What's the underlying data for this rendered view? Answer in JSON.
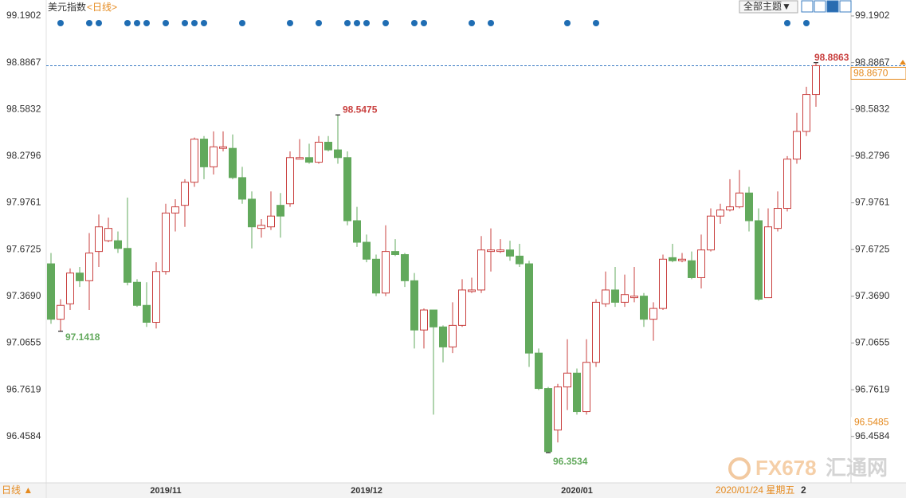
{
  "chart_data": {
    "type": "candlestick",
    "title": "美元指数",
    "subtitle": "<日线>",
    "theme_button": "全部主题▼",
    "period_button": "日线 ▲",
    "cursor_date": "2020/01/24 星期五",
    "cursor_page": "2",
    "watermark_brand": "FX678",
    "watermark_name": "汇通网",
    "categories": [
      null,
      null,
      null,
      null,
      null,
      null,
      null,
      null,
      null,
      null,
      null,
      null,
      "2019/11",
      null,
      null,
      null,
      null,
      null,
      null,
      null,
      null,
      null,
      null,
      null,
      null,
      null,
      null,
      null,
      null,
      null,
      null,
      null,
      null,
      "2019/12",
      null,
      null,
      null,
      null,
      null,
      null,
      null,
      null,
      null,
      null,
      null,
      null,
      null,
      null,
      null,
      null,
      null,
      null,
      null,
      null,
      null,
      "2020/01",
      null,
      null,
      null,
      null,
      null,
      null,
      null,
      null,
      null,
      null,
      null,
      null,
      null,
      null,
      null,
      null,
      null,
      null,
      null,
      null,
      null,
      null,
      null,
      null,
      null
    ],
    "open": [
      97.58,
      97.22,
      97.32,
      97.52,
      97.47,
      97.66,
      97.73,
      97.73,
      97.68,
      97.46,
      97.31,
      97.2,
      97.53,
      97.91,
      97.96,
      98.11,
      98.39,
      98.21,
      98.33,
      98.33,
      98.14,
      98.0,
      97.81,
      97.82,
      97.96,
      97.97,
      98.26,
      98.27,
      98.24,
      98.37,
      98.32,
      98.27,
      97.86,
      97.72,
      97.61,
      97.39,
      97.66,
      97.64,
      97.47,
      97.15,
      97.28,
      97.17,
      97.04,
      97.18,
      97.4,
      97.41,
      97.66,
      97.66,
      97.67,
      97.63,
      97.58,
      97.0,
      96.77,
      96.5,
      96.78,
      96.87,
      96.62,
      96.94,
      97.32,
      97.41,
      97.33,
      97.36,
      97.37,
      97.22,
      97.29,
      97.62,
      97.6,
      97.6,
      97.49,
      97.67,
      97.89,
      97.93,
      97.95,
      98.04,
      97.86,
      97.36,
      97.81,
      97.94,
      98.26,
      98.44,
      98.68
    ],
    "high": [
      97.65,
      97.35,
      97.55,
      97.56,
      97.78,
      97.9,
      97.88,
      97.79,
      98.01,
      97.48,
      97.46,
      97.59,
      97.97,
      98.0,
      98.13,
      98.4,
      98.41,
      98.44,
      98.44,
      98.42,
      98.21,
      98.05,
      97.87,
      98.05,
      98.04,
      98.31,
      98.39,
      98.36,
      98.41,
      98.41,
      98.5475,
      98.31,
      97.95,
      97.77,
      97.64,
      97.83,
      97.74,
      97.65,
      97.52,
      97.29,
      97.28,
      97.18,
      97.33,
      97.48,
      97.49,
      97.76,
      97.81,
      97.74,
      97.73,
      97.71,
      97.6,
      97.03,
      96.78,
      96.8,
      97.09,
      96.9,
      97.09,
      97.35,
      97.53,
      97.56,
      97.51,
      97.56,
      97.39,
      97.33,
      97.64,
      97.71,
      97.65,
      97.66,
      97.77,
      97.94,
      97.97,
      98.13,
      98.19,
      98.08,
      97.94,
      97.94,
      98.05,
      98.28,
      98.56,
      98.73,
      98.8863
    ],
    "low": [
      97.19,
      97.1418,
      97.28,
      97.43,
      97.28,
      97.56,
      97.72,
      97.65,
      97.44,
      97.3,
      97.17,
      97.16,
      97.51,
      97.79,
      97.82,
      98.08,
      98.13,
      98.16,
      98.31,
      98.13,
      97.97,
      97.68,
      97.75,
      97.8,
      97.75,
      97.95,
      98.26,
      98.23,
      98.23,
      98.31,
      98.23,
      97.83,
      97.69,
      97.59,
      97.37,
      97.37,
      97.63,
      97.43,
      97.03,
      97.03,
      96.6,
      96.94,
      97.0,
      97.17,
      97.39,
      97.39,
      97.53,
      97.65,
      97.6,
      97.56,
      96.91,
      96.76,
      96.3534,
      96.42,
      96.63,
      96.6,
      96.6,
      96.91,
      97.3,
      97.3,
      97.3,
      97.33,
      97.17,
      97.08,
      97.28,
      97.59,
      97.59,
      97.48,
      97.42,
      97.66,
      97.84,
      97.92,
      97.94,
      97.79,
      97.34,
      97.36,
      97.79,
      97.92,
      98.23,
      98.41,
      98.6
    ],
    "close": [
      97.22,
      97.31,
      97.52,
      97.47,
      97.65,
      97.82,
      97.81,
      97.68,
      97.46,
      97.31,
      97.2,
      97.53,
      97.91,
      97.95,
      98.11,
      98.39,
      98.21,
      98.34,
      98.34,
      98.14,
      98.0,
      97.82,
      97.83,
      97.89,
      97.89,
      98.27,
      98.27,
      98.24,
      98.37,
      98.32,
      98.27,
      97.86,
      97.72,
      97.61,
      97.39,
      97.66,
      97.64,
      97.47,
      97.15,
      97.28,
      97.17,
      97.04,
      97.18,
      97.41,
      97.41,
      97.67,
      97.67,
      97.67,
      97.63,
      97.58,
      97.0,
      96.77,
      96.36,
      96.78,
      96.87,
      96.62,
      96.94,
      97.33,
      97.41,
      97.33,
      97.38,
      97.37,
      97.22,
      97.29,
      97.61,
      97.6,
      97.61,
      97.49,
      97.67,
      97.89,
      97.93,
      97.95,
      98.04,
      97.86,
      97.35,
      97.82,
      97.94,
      98.26,
      98.44,
      98.68,
      98.867
    ],
    "up_color": "#c9403f",
    "down_color": "#62a95c",
    "event_color": "#1f6db3",
    "events": [
      1,
      4,
      5,
      8,
      9,
      10,
      12,
      14,
      15,
      16,
      20,
      25,
      28,
      31,
      32,
      33,
      35,
      38,
      39,
      44,
      46,
      54,
      57,
      77,
      79
    ],
    "last_price": {
      "value": 98.867,
      "label": "98.8670"
    },
    "cursor_price": 96.5485,
    "ylim": [
      96.1622,
      99.2937
    ],
    "yticks": [
      96.4584,
      96.7619,
      97.0655,
      {
        "value": 97.369,
        "label": "97.3690"
      },
      97.6725,
      97.9761,
      98.2796,
      98.5832,
      98.8867,
      99.1902
    ]
  }
}
